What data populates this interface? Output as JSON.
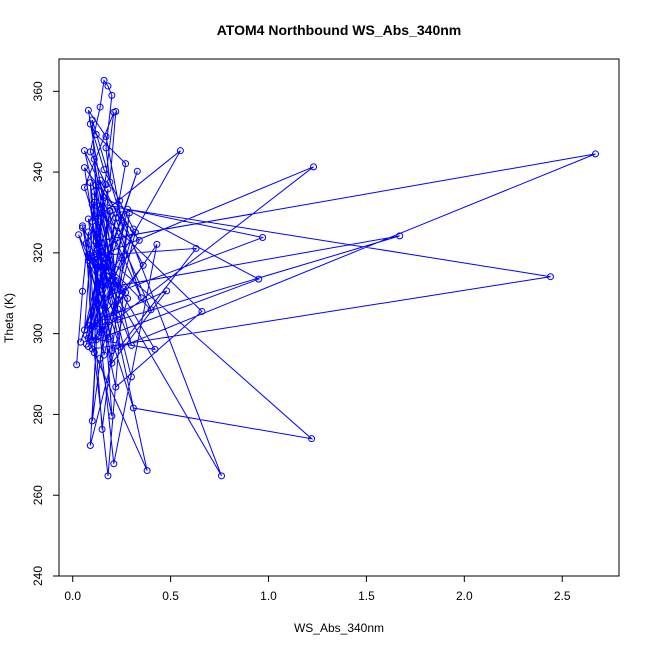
{
  "chart_data": {
    "type": "line",
    "title": "ATOM4 Northbound WS_Abs_340nm",
    "xlabel": "WS_Abs_340nm",
    "ylabel": "Theta (K)",
    "xlim": [
      -0.07,
      2.79
    ],
    "ylim": [
      240,
      368
    ],
    "x_ticks": [
      0.0,
      0.5,
      1.0,
      1.5,
      2.0,
      2.5
    ],
    "x_tick_labels": [
      "0.0",
      "0.5",
      "1.0",
      "1.5",
      "2.0",
      "2.5"
    ],
    "y_ticks": [
      240,
      260,
      280,
      300,
      320,
      340,
      360
    ],
    "y_tick_labels": [
      "240",
      "260",
      "280",
      "300",
      "320",
      "340",
      "360"
    ],
    "grid": false,
    "marker": "open-circle",
    "line_style": "solid",
    "series": [
      {
        "color": "#0000ff",
        "x": [
          0.02,
          0.05,
          0.08,
          0.1,
          0.15,
          0.25,
          0.13,
          0.09,
          0.2,
          2.67,
          0.12,
          0.18,
          0.3,
          0.06,
          0.22,
          0.35,
          0.11,
          0.14,
          1.23,
          0.08,
          0.05,
          0.17,
          0.28,
          2.44,
          0.1,
          0.07,
          0.4,
          0.12,
          0.21,
          1.67,
          0.09,
          0.16,
          0.33,
          0.04,
          0.26,
          0.19,
          0.97,
          0.11,
          0.06,
          0.15,
          0.63,
          0.24,
          0.13,
          0.03,
          0.31,
          1.22,
          0.14,
          0.08,
          0.42,
          0.18,
          0.1,
          0.66,
          0.22,
          0.05,
          0.27,
          0.12,
          0.95,
          0.16,
          0.09,
          0.48,
          0.2,
          0.11,
          0.76,
          0.25,
          0.07,
          0.38,
          0.13,
          0.3,
          0.1,
          0.55,
          0.17,
          0.08,
          0.43,
          0.21,
          0.12,
          0.34,
          0.06,
          0.19,
          0.29,
          0.15,
          0.09,
          0.23,
          0.14,
          0.11,
          0.18,
          0.26,
          0.08,
          0.32,
          0.16,
          0.13,
          0.1,
          0.2,
          0.07,
          0.24,
          0.12,
          0.28,
          0.09,
          0.15,
          0.19,
          0.11,
          0.36,
          0.14,
          0.22,
          0.08,
          0.17,
          0.25,
          0.1,
          0.13,
          0.21,
          0.06,
          0.18,
          0.27,
          0.12,
          0.09,
          0.16,
          0.31,
          0.14,
          0.2,
          0.11,
          0.23,
          0.08,
          0.15,
          0.18,
          0.13,
          0.1,
          0.22,
          0.19,
          0.12,
          0.17,
          0.09,
          0.14,
          0.16,
          0.18,
          0.2,
          0.17,
          0.19,
          0.22
        ],
        "y": [
          292.3,
          310.5,
          325.2,
          298.4,
          330.1,
          318.7,
          302.6,
          337.4,
          295.8,
          344.5,
          322.9,
          312.3,
          297.1,
          345.3,
          328.6,
          308.9,
          335.2,
          300.4,
          341.3,
          318.1,
          326.7,
          305.2,
          330.8,
          314.1,
          296.2,
          322.4,
          305.9,
          336.8,
          311.7,
          324.2,
          301.3,
          316.4,
          340.2,
          297.9,
          327.3,
          309.6,
          323.8,
          332.5,
          300.9,
          319.4,
          321.1,
          296.7,
          313.8,
          324.5,
          281.6,
          274.0,
          320.3,
          298.9,
          296.1,
          315.6,
          331.9,
          305.5,
          286.8,
          326.2,
          310.2,
          298.5,
          313.5,
          333.7,
          302.1,
          310.6,
          292.7,
          318.9,
          264.8,
          329.4,
          299.6,
          266.1,
          322.0,
          289.3,
          327.8,
          345.3,
          312.6,
          296.8,
          322.1,
          267.8,
          308.4,
          323.1,
          341.1,
          299.2,
          329.9,
          276.3,
          316.8,
          303.5,
          327.7,
          295.3,
          264.8,
          311.1,
          319.6,
          325.1,
          294.7,
          306.8,
          278.4,
          315.3,
          297.4,
          332.9,
          319.8,
          308.7,
          272.3,
          322.5,
          330.2,
          301.8,
          316.9,
          338.0,
          313.2,
          355.3,
          348.8,
          328.1,
          352.9,
          323.7,
          354.8,
          336.2,
          317.5,
          342.1,
          349.3,
          351.9,
          340.6,
          325.9,
          293.9,
          279.6,
          343.2,
          306.1,
          328.4,
          300.2,
          335.8,
          324.6,
          318.2,
          311.5,
          330.5,
          329.1,
          336.9,
          345.0,
          356.1,
          362.7,
          361.3,
          359.0,
          346.0,
          337.5,
          355.0
        ]
      }
    ]
  }
}
